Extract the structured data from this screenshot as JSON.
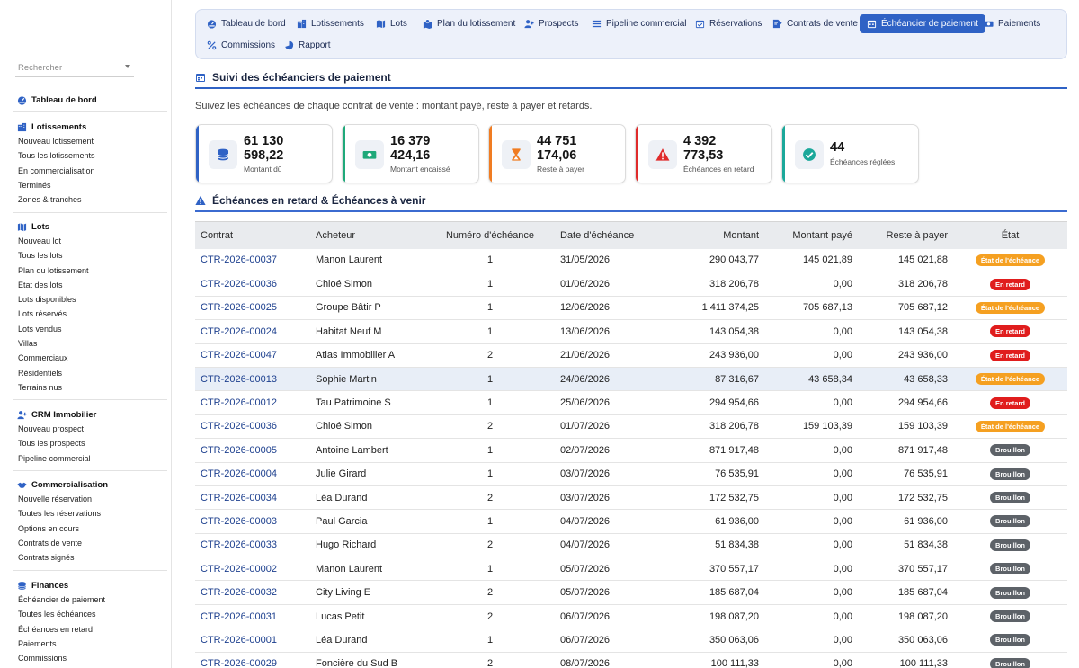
{
  "search": {
    "placeholder": "Rechercher"
  },
  "sidebar": [
    {
      "head": "Tableau de bord",
      "icon": "dashboard-icon",
      "items": []
    },
    {
      "head": "Lotissements",
      "icon": "buildings-icon",
      "items": [
        "Nouveau lotissement",
        "Tous les lotissements",
        "En commercialisation",
        "Terminés",
        "Zones & tranches"
      ]
    },
    {
      "head": "Lots",
      "icon": "map-icon",
      "items": [
        "Nouveau lot",
        "Tous les lots",
        "Plan du lotissement",
        "État des lots",
        "Lots disponibles",
        "Lots réservés",
        "Lots vendus",
        "Villas",
        "Commerciaux",
        "Résidentiels",
        "Terrains nus"
      ]
    },
    {
      "head": "CRM Immobilier",
      "icon": "user-plus-icon",
      "items": [
        "Nouveau prospect",
        "Tous les prospects",
        "Pipeline commercial"
      ]
    },
    {
      "head": "Commercialisation",
      "icon": "handshake-icon",
      "items": [
        "Nouvelle réservation",
        "Toutes les réservations",
        "Options en cours",
        "Contrats de vente",
        "Contrats signés"
      ]
    },
    {
      "head": "Finances",
      "icon": "coins-icon",
      "items": [
        "Échéancier de paiement",
        "Toutes les échéances",
        "Échéances en retard",
        "Paiements",
        "Commissions"
      ]
    }
  ],
  "tabs": [
    {
      "label": "Tableau de bord",
      "icon": "dashboard-icon",
      "active": false
    },
    {
      "label": "Lotissements",
      "icon": "buildings-icon",
      "active": false
    },
    {
      "label": "Lots",
      "icon": "map-icon",
      "active": false
    },
    {
      "label": "Plan du lotissement",
      "icon": "map-marked-icon",
      "active": false
    },
    {
      "label": "Prospects",
      "icon": "user-plus-icon",
      "active": false
    },
    {
      "label": "Pipeline commercial",
      "icon": "list-icon",
      "active": false
    },
    {
      "label": "Réservations",
      "icon": "calendar-check-icon",
      "active": false
    },
    {
      "label": "Contrats de vente",
      "icon": "file-signature-icon",
      "active": false
    },
    {
      "label": "Échéancier de paiement",
      "icon": "calendar-icon",
      "active": true
    },
    {
      "label": "Paiements",
      "icon": "money-icon",
      "active": false
    },
    {
      "label": "Commissions",
      "icon": "percent-icon",
      "active": false
    },
    {
      "label": "Rapport",
      "icon": "pie-chart-icon",
      "active": false
    }
  ],
  "page": {
    "title": "Suivi des échéanciers de paiement",
    "subtitle": "Suivez les échéances de chaque contrat de vente : montant payé, reste à payer et retards.",
    "section2_title": "Échéances en retard & Échéances à venir"
  },
  "kpis": [
    {
      "line1": "61 130",
      "line2": "598,22",
      "label": "Montant dû",
      "color": "#2f62c5",
      "icon": "coins-stack-icon"
    },
    {
      "line1": "16 379",
      "line2": "424,16",
      "label": "Montant encaissé",
      "color": "#1fa97a",
      "icon": "money-icon"
    },
    {
      "line1": "44 751",
      "line2": "174,06",
      "label": "Reste à payer",
      "color": "#f07c22",
      "icon": "hourglass-icon"
    },
    {
      "line1": "4 392",
      "line2": "773,53",
      "label": "Échéances en retard",
      "color": "#e02b2b",
      "icon": "warning-icon"
    },
    {
      "line1": "44",
      "line2": "",
      "label": "Échéances réglées",
      "color": "#1ba89a",
      "icon": "check-circle-icon"
    }
  ],
  "table": {
    "headers": [
      "Contrat",
      "Acheteur",
      "Numéro d'échéance",
      "Date d'échéance",
      "Montant",
      "Montant payé",
      "Reste à payer",
      "État"
    ],
    "rows": [
      {
        "contrat": "CTR-2026-00037",
        "acheteur": "Manon Laurent",
        "num": "1",
        "date": "31/05/2026",
        "montant": "290 043,77",
        "paye": "145 021,89",
        "reste": "145 021,88",
        "etat": "État de l'échéance",
        "etat_type": "orange"
      },
      {
        "contrat": "CTR-2026-00036",
        "acheteur": "Chloé Simon",
        "num": "1",
        "date": "01/06/2026",
        "montant": "318 206,78",
        "paye": "0,00",
        "reste": "318 206,78",
        "etat": "En retard",
        "etat_type": "red"
      },
      {
        "contrat": "CTR-2026-00025",
        "acheteur": "Groupe Bâtir P",
        "num": "1",
        "date": "12/06/2026",
        "montant": "1 411 374,25",
        "paye": "705 687,13",
        "reste": "705 687,12",
        "etat": "État de l'échéance",
        "etat_type": "orange"
      },
      {
        "contrat": "CTR-2026-00024",
        "acheteur": "Habitat Neuf M",
        "num": "1",
        "date": "13/06/2026",
        "montant": "143 054,38",
        "paye": "0,00",
        "reste": "143 054,38",
        "etat": "En retard",
        "etat_type": "red"
      },
      {
        "contrat": "CTR-2026-00047",
        "acheteur": "Atlas Immobilier A",
        "num": "2",
        "date": "21/06/2026",
        "montant": "243 936,00",
        "paye": "0,00",
        "reste": "243 936,00",
        "etat": "En retard",
        "etat_type": "red"
      },
      {
        "contrat": "CTR-2026-00013",
        "acheteur": "Sophie Martin",
        "num": "1",
        "date": "24/06/2026",
        "montant": "87 316,67",
        "paye": "43 658,34",
        "reste": "43 658,33",
        "etat": "État de l'échéance",
        "etat_type": "orange",
        "highlight": true
      },
      {
        "contrat": "CTR-2026-00012",
        "acheteur": "Tau Patrimoine S",
        "num": "1",
        "date": "25/06/2026",
        "montant": "294 954,66",
        "paye": "0,00",
        "reste": "294 954,66",
        "etat": "En retard",
        "etat_type": "red"
      },
      {
        "contrat": "CTR-2026-00036",
        "acheteur": "Chloé Simon",
        "num": "2",
        "date": "01/07/2026",
        "montant": "318 206,78",
        "paye": "159 103,39",
        "reste": "159 103,39",
        "etat": "État de l'échéance",
        "etat_type": "orange"
      },
      {
        "contrat": "CTR-2026-00005",
        "acheteur": "Antoine Lambert",
        "num": "1",
        "date": "02/07/2026",
        "montant": "871 917,48",
        "paye": "0,00",
        "reste": "871 917,48",
        "etat": "Brouillon",
        "etat_type": "grey"
      },
      {
        "contrat": "CTR-2026-00004",
        "acheteur": "Julie Girard",
        "num": "1",
        "date": "03/07/2026",
        "montant": "76 535,91",
        "paye": "0,00",
        "reste": "76 535,91",
        "etat": "Brouillon",
        "etat_type": "grey"
      },
      {
        "contrat": "CTR-2026-00034",
        "acheteur": "Léa Durand",
        "num": "2",
        "date": "03/07/2026",
        "montant": "172 532,75",
        "paye": "0,00",
        "reste": "172 532,75",
        "etat": "Brouillon",
        "etat_type": "grey"
      },
      {
        "contrat": "CTR-2026-00003",
        "acheteur": "Paul Garcia",
        "num": "1",
        "date": "04/07/2026",
        "montant": "61 936,00",
        "paye": "0,00",
        "reste": "61 936,00",
        "etat": "Brouillon",
        "etat_type": "grey"
      },
      {
        "contrat": "CTR-2026-00033",
        "acheteur": "Hugo Richard",
        "num": "2",
        "date": "04/07/2026",
        "montant": "51 834,38",
        "paye": "0,00",
        "reste": "51 834,38",
        "etat": "Brouillon",
        "etat_type": "grey"
      },
      {
        "contrat": "CTR-2026-00002",
        "acheteur": "Manon Laurent",
        "num": "1",
        "date": "05/07/2026",
        "montant": "370 557,17",
        "paye": "0,00",
        "reste": "370 557,17",
        "etat": "Brouillon",
        "etat_type": "grey"
      },
      {
        "contrat": "CTR-2026-00032",
        "acheteur": "City Living E",
        "num": "2",
        "date": "05/07/2026",
        "montant": "185 687,04",
        "paye": "0,00",
        "reste": "185 687,04",
        "etat": "Brouillon",
        "etat_type": "grey"
      },
      {
        "contrat": "CTR-2026-00031",
        "acheteur": "Lucas Petit",
        "num": "2",
        "date": "06/07/2026",
        "montant": "198 087,20",
        "paye": "0,00",
        "reste": "198 087,20",
        "etat": "Brouillon",
        "etat_type": "grey"
      },
      {
        "contrat": "CTR-2026-00001",
        "acheteur": "Léa Durand",
        "num": "1",
        "date": "06/07/2026",
        "montant": "350 063,06",
        "paye": "0,00",
        "reste": "350 063,06",
        "etat": "Brouillon",
        "etat_type": "grey"
      },
      {
        "contrat": "CTR-2026-00029",
        "acheteur": "Foncière du Sud B",
        "num": "2",
        "date": "08/07/2026",
        "montant": "100 111,33",
        "paye": "0,00",
        "reste": "100 111,33",
        "etat": "Brouillon",
        "etat_type": "grey"
      }
    ]
  }
}
